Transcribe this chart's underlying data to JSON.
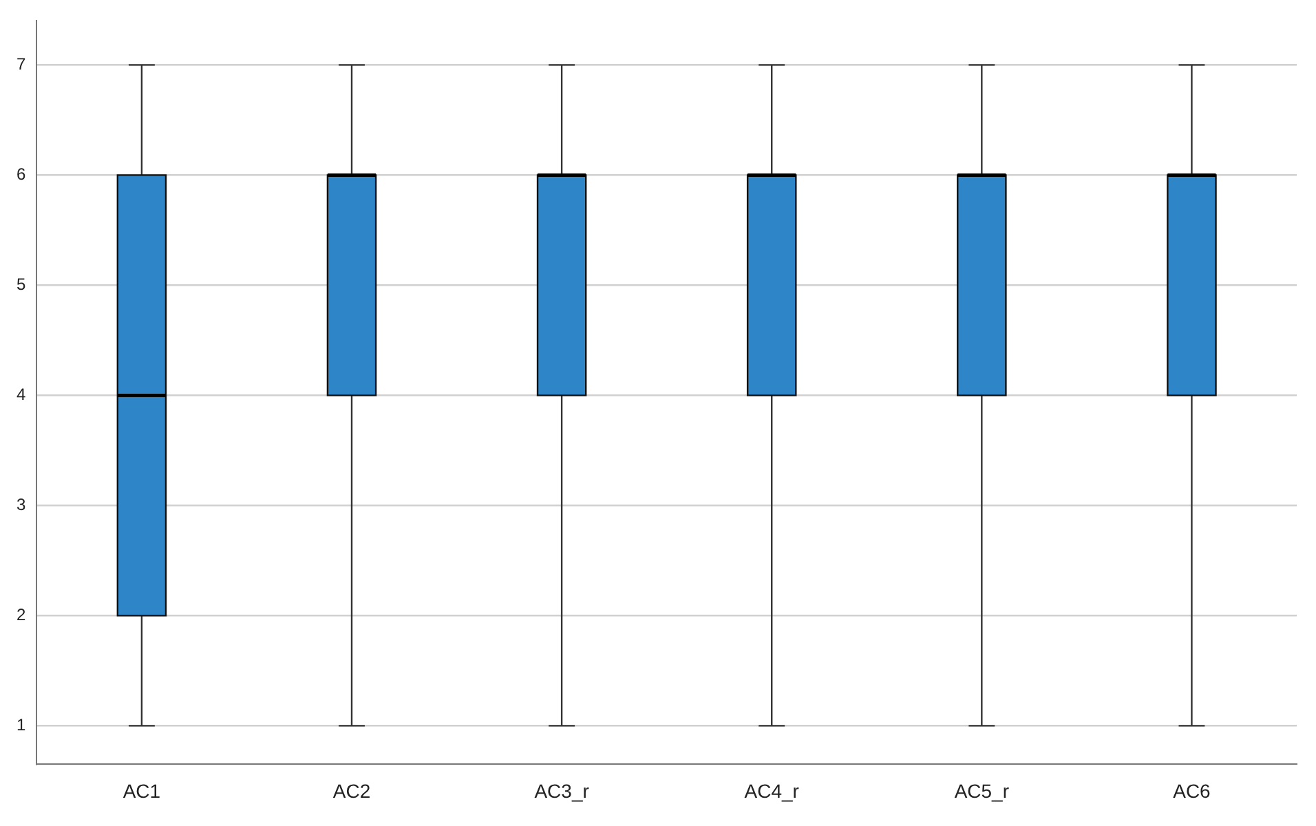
{
  "chart_data": {
    "type": "box",
    "categories": [
      "AC1",
      "AC2",
      "AC3_r",
      "AC4_r",
      "AC5_r",
      "AC6"
    ],
    "series": [
      {
        "color": "#2e86c8",
        "boxes": [
          {
            "low": 1,
            "q1": 2,
            "median": 4,
            "q3": 6,
            "high": 7
          },
          {
            "low": 1,
            "q1": 4,
            "median": 6,
            "q3": 6,
            "high": 7
          },
          {
            "low": 1,
            "q1": 4,
            "median": 6,
            "q3": 6,
            "high": 7
          },
          {
            "low": 1,
            "q1": 4,
            "median": 6,
            "q3": 6,
            "high": 7
          },
          {
            "low": 1,
            "q1": 4,
            "median": 6,
            "q3": 6,
            "high": 7
          },
          {
            "low": 1,
            "q1": 4,
            "median": 6,
            "q3": 6,
            "high": 7
          }
        ]
      }
    ],
    "ylim": [
      0.65,
      7.4
    ],
    "yticks": [
      1,
      2,
      3,
      4,
      5,
      6,
      7
    ],
    "grid": "y",
    "legend": false
  }
}
